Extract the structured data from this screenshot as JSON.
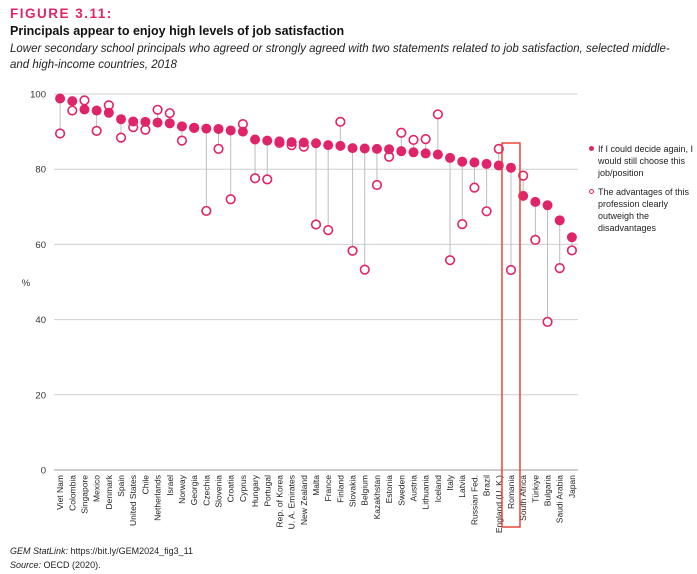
{
  "header": {
    "figure_label": "FIGURE 3.11:",
    "title": "Principals appear to enjoy high levels of job satisfaction",
    "subtitle": "Lower secondary school principals who agreed or strongly agreed with two statements related to job satisfaction, selected middle- and high-income countries, 2018"
  },
  "legend": {
    "filled_label": "If I could decide again, I would still choose this job/position",
    "open_label": "The advantages of this profession clearly outweigh the disadvantages"
  },
  "footer": {
    "statlink_label": "GEM StatLink:",
    "statlink_url": "https://bit.ly/GEM2024_fig3_11",
    "source_label": "Source:",
    "source_text": "OECD (2020)."
  },
  "colors": {
    "accent": "#e0246a",
    "grid": "#d0d0d0",
    "connector": "#bdbdbd",
    "highlight_box": "#e8392f"
  },
  "chart_data": {
    "type": "scatter",
    "ylabel": "%",
    "ylim": [
      0,
      100
    ],
    "yticks": [
      0,
      20,
      40,
      60,
      80,
      100
    ],
    "highlighted_category": "Romania",
    "categories": [
      "Viet Nam",
      "Colombia",
      "Singapore",
      "Mexico",
      "Denmark",
      "Spain",
      "United States",
      "Chile",
      "Netherlands",
      "Israel",
      "Norway",
      "Georgia",
      "Czechia",
      "Slovenia",
      "Croatia",
      "Cyprus",
      "Hungary",
      "Portugal",
      "Rep. of Korea",
      "U. A. Emirates",
      "New Zealand",
      "Malta",
      "France",
      "Finland",
      "Slovakia",
      "Belgium",
      "Kazakhstan",
      "Estonia",
      "Sweden",
      "Austria",
      "Lithuania",
      "Iceland",
      "Italy",
      "Latvia",
      "Russian Fed.",
      "Brazil",
      "England (U. K.)",
      "Romania",
      "South Africa",
      "Türkiye",
      "Bulgaria",
      "Saudi Arabia",
      "Japan"
    ],
    "series": [
      {
        "name": "If I could decide again, I would still choose this job/position",
        "marker": "filled",
        "values": [
          98.8,
          98.1,
          95.9,
          95.6,
          95.0,
          93.3,
          92.7,
          92.6,
          92.4,
          92.2,
          91.4,
          91.0,
          90.8,
          90.7,
          90.3,
          90.0,
          87.9,
          87.6,
          87.4,
          87.2,
          87.1,
          86.9,
          86.4,
          86.2,
          85.6,
          85.5,
          85.4,
          85.3,
          84.8,
          84.5,
          84.2,
          83.9,
          83.0,
          82.0,
          81.8,
          81.4,
          81.0,
          80.4,
          72.9,
          71.3,
          70.4,
          66.4,
          61.9
        ]
      },
      {
        "name": "The advantages of this profession clearly outweigh the disadvantages",
        "marker": "open",
        "values": [
          89.5,
          95.6,
          98.3,
          90.2,
          97.0,
          88.4,
          91.2,
          90.5,
          95.8,
          94.9,
          87.6,
          91.0,
          68.9,
          85.4,
          72.0,
          92.0,
          77.6,
          77.3,
          87.0,
          86.4,
          86.0,
          65.3,
          63.8,
          92.6,
          58.3,
          53.3,
          75.8,
          83.3,
          89.7,
          87.8,
          88.0,
          94.6,
          55.8,
          65.4,
          75.1,
          68.8,
          85.4,
          53.2,
          78.3,
          61.2,
          39.4,
          53.7,
          58.4
        ]
      }
    ]
  }
}
